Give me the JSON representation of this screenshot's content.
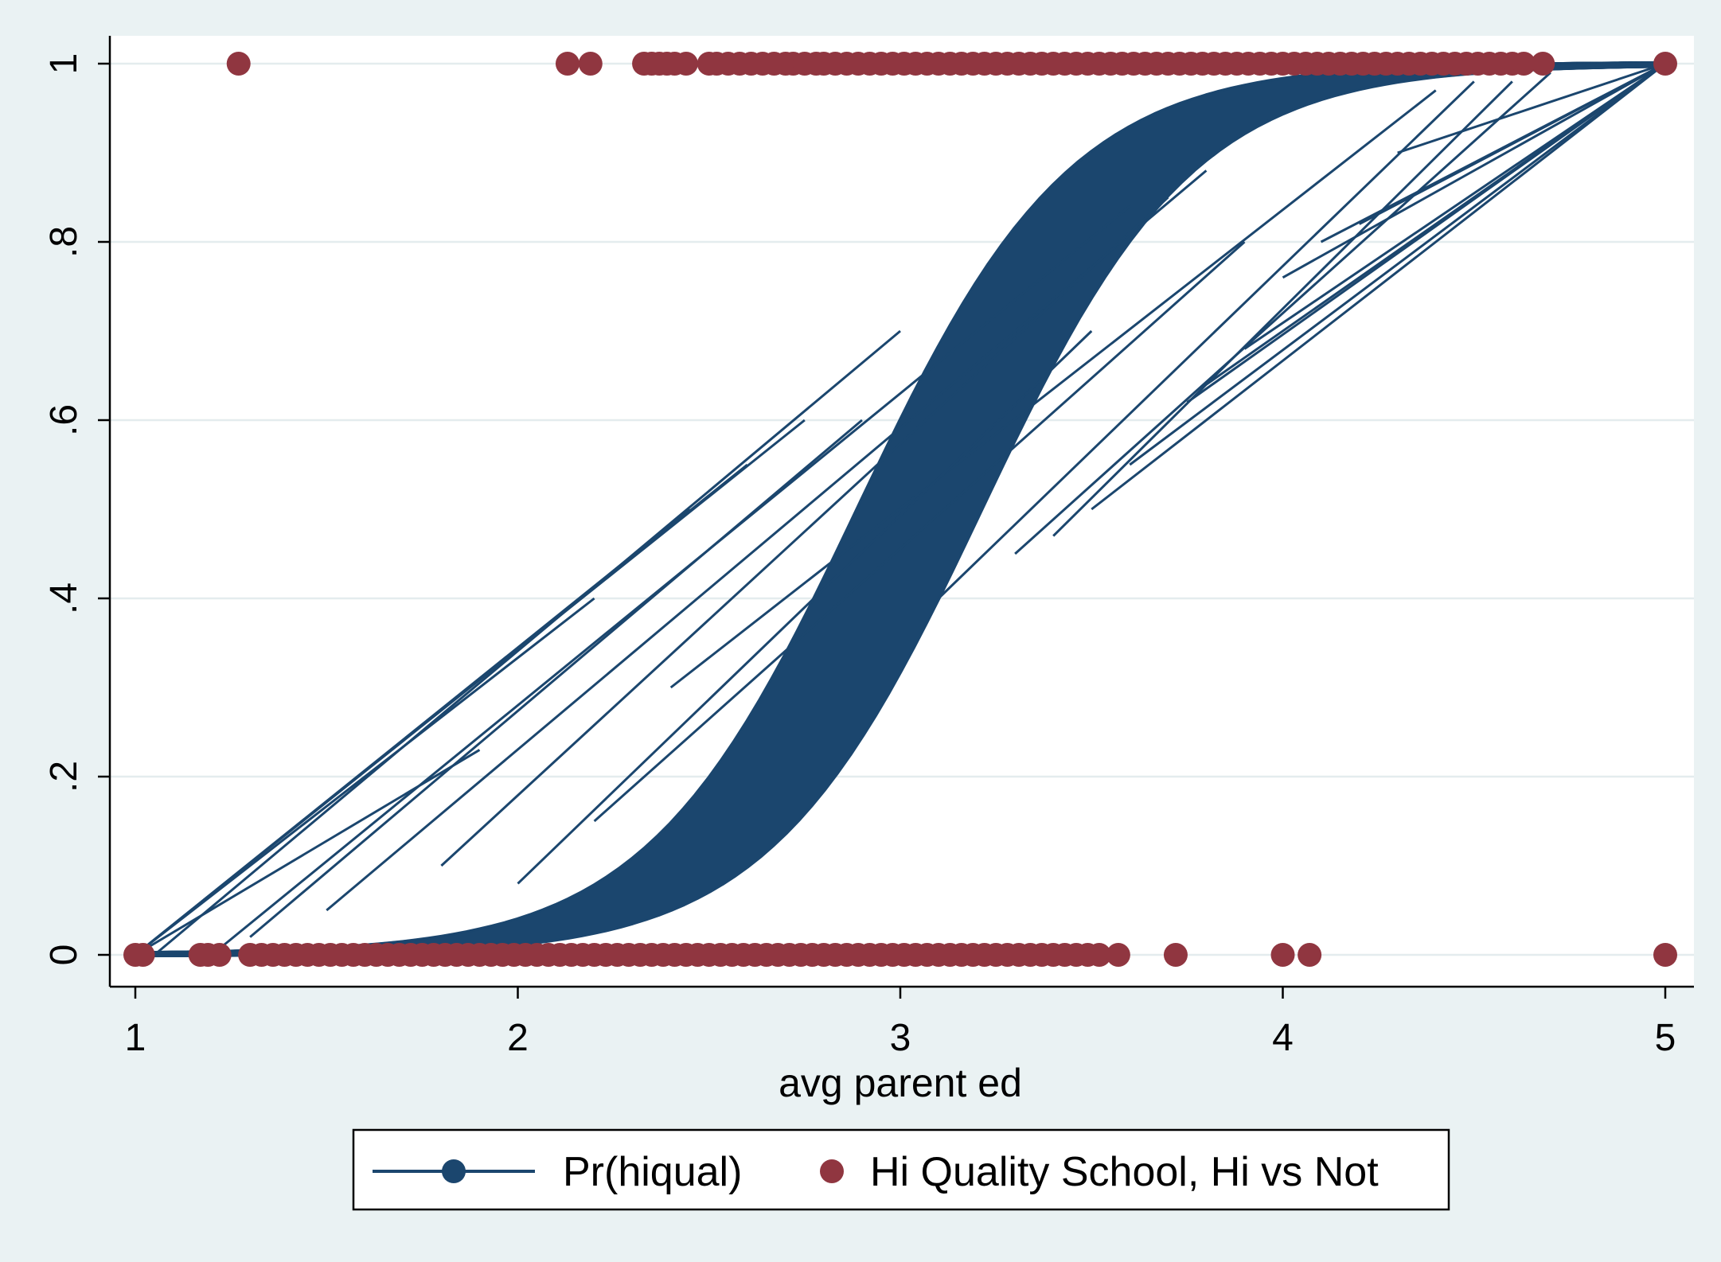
{
  "chart_data": {
    "type": "scatter",
    "title": "",
    "xlabel": "avg parent ed",
    "ylabel": "",
    "xlim": [
      1,
      5
    ],
    "ylim": [
      0,
      1
    ],
    "x_ticks": [
      {
        "value": 1,
        "label": "1"
      },
      {
        "value": 2,
        "label": "2"
      },
      {
        "value": 3,
        "label": "3"
      },
      {
        "value": 4,
        "label": "4"
      },
      {
        "value": 5,
        "label": "5"
      }
    ],
    "y_ticks": [
      {
        "value": 0,
        "label": "0"
      },
      {
        "value": 0.2,
        "label": ".2"
      },
      {
        "value": 0.4,
        "label": ".4"
      },
      {
        "value": 0.6,
        "label": ".6"
      },
      {
        "value": 0.8,
        "label": ".8"
      },
      {
        "value": 1,
        "label": "1"
      }
    ],
    "grid": true,
    "legend_position": "bottom",
    "colors": {
      "background": "#eaf2f3",
      "plot_background": "#ffffff",
      "line_series": "#1b466e",
      "point_series": "#903640",
      "grid": "#e4ecee"
    },
    "series": [
      {
        "name": "Pr(hiqual)",
        "type": "line",
        "curve": "logistic",
        "logistic_center": 3.05,
        "logistic_slope": 3.6,
        "band_width": 0.32,
        "x": [
          1.0,
          1.2,
          1.4,
          1.6,
          1.8,
          2.0,
          2.2,
          2.4,
          2.6,
          2.8,
          3.0,
          3.2,
          3.4,
          3.6,
          3.8,
          4.0,
          4.2,
          4.4,
          4.6,
          4.8,
          5.0
        ],
        "y": [
          0.0,
          0.001,
          0.003,
          0.006,
          0.012,
          0.023,
          0.046,
          0.088,
          0.165,
          0.289,
          0.455,
          0.63,
          0.778,
          0.877,
          0.937,
          0.968,
          0.984,
          0.992,
          0.996,
          0.998,
          1.0
        ],
        "straight_lines": [
          [
            [
              1.0,
              0.0
            ],
            [
              2.75,
              0.6
            ]
          ],
          [
            [
              1.0,
              0.0
            ],
            [
              2.6,
              0.55
            ]
          ],
          [
            [
              1.0,
              0.0
            ],
            [
              2.45,
              0.5
            ]
          ],
          [
            [
              1.05,
              0.0
            ],
            [
              3.0,
              0.7
            ]
          ],
          [
            [
              1.0,
              0.0
            ],
            [
              2.2,
              0.4
            ]
          ],
          [
            [
              1.2,
              0.0
            ],
            [
              3.6,
              0.84
            ]
          ],
          [
            [
              1.5,
              0.05
            ],
            [
              3.8,
              0.88
            ]
          ],
          [
            [
              1.0,
              0.0
            ],
            [
              1.9,
              0.23
            ]
          ],
          [
            [
              1.8,
              0.1
            ],
            [
              3.7,
              0.85
            ]
          ],
          [
            [
              2.4,
              0.3
            ],
            [
              4.4,
              0.97
            ]
          ],
          [
            [
              2.2,
              0.15
            ],
            [
              3.9,
              0.8
            ]
          ],
          [
            [
              3.6,
              0.55
            ],
            [
              5.0,
              1.0
            ]
          ],
          [
            [
              3.5,
              0.5
            ],
            [
              5.0,
              1.0
            ]
          ],
          [
            [
              3.8,
              0.64
            ],
            [
              5.0,
              1.0
            ]
          ],
          [
            [
              3.9,
              0.68
            ],
            [
              5.0,
              1.0
            ]
          ],
          [
            [
              3.75,
              0.62
            ],
            [
              5.0,
              1.0
            ]
          ],
          [
            [
              4.0,
              0.76
            ],
            [
              5.0,
              1.0
            ]
          ],
          [
            [
              3.3,
              0.45
            ],
            [
              4.7,
              0.99
            ]
          ],
          [
            [
              3.4,
              0.47
            ],
            [
              4.6,
              0.98
            ]
          ],
          [
            [
              3.1,
              0.4
            ],
            [
              4.5,
              0.98
            ]
          ],
          [
            [
              4.2,
              0.82
            ],
            [
              5.0,
              1.0
            ]
          ],
          [
            [
              4.1,
              0.8
            ],
            [
              5.0,
              1.0
            ]
          ],
          [
            [
              4.3,
              0.9
            ],
            [
              5.0,
              1.0
            ]
          ],
          [
            [
              2.0,
              0.08
            ],
            [
              3.5,
              0.7
            ]
          ],
          [
            [
              1.3,
              0.02
            ],
            [
              2.9,
              0.6
            ]
          ]
        ]
      },
      {
        "name": "Hi Quality School, Hi vs Not",
        "type": "scatter",
        "y1_x": [
          1.27,
          2.13,
          2.19,
          2.33,
          2.35,
          2.37,
          2.39,
          2.41,
          2.44,
          2.5,
          2.52,
          2.55,
          2.58,
          2.61,
          2.64,
          2.67,
          2.7,
          2.72,
          2.75,
          2.78,
          2.8,
          2.83,
          2.86,
          2.89,
          2.92,
          2.95,
          2.98,
          3.01,
          3.04,
          3.07,
          3.1,
          3.13,
          3.16,
          3.19,
          3.22,
          3.25,
          3.28,
          3.31,
          3.34,
          3.37,
          3.4,
          3.43,
          3.46,
          3.49,
          3.52,
          3.55,
          3.58,
          3.61,
          3.64,
          3.67,
          3.7,
          3.73,
          3.76,
          3.79,
          3.82,
          3.85,
          3.88,
          3.91,
          3.94,
          3.97,
          4.0,
          4.03,
          4.06,
          4.09,
          4.12,
          4.15,
          4.18,
          4.21,
          4.24,
          4.27,
          4.3,
          4.33,
          4.36,
          4.39,
          4.42,
          4.45,
          4.48,
          4.51,
          4.54,
          4.57,
          4.6,
          4.63,
          4.68,
          5.0
        ],
        "y0_x": [
          1.0,
          1.02,
          1.17,
          1.19,
          1.22,
          1.3,
          1.33,
          1.36,
          1.39,
          1.42,
          1.45,
          1.48,
          1.51,
          1.54,
          1.57,
          1.6,
          1.63,
          1.66,
          1.69,
          1.72,
          1.75,
          1.78,
          1.81,
          1.84,
          1.87,
          1.9,
          1.93,
          1.96,
          1.99,
          2.02,
          2.05,
          2.08,
          2.11,
          2.14,
          2.17,
          2.2,
          2.23,
          2.26,
          2.29,
          2.32,
          2.35,
          2.38,
          2.41,
          2.44,
          2.47,
          2.5,
          2.53,
          2.56,
          2.59,
          2.62,
          2.65,
          2.68,
          2.71,
          2.74,
          2.77,
          2.8,
          2.83,
          2.86,
          2.89,
          2.92,
          2.95,
          2.98,
          3.01,
          3.04,
          3.07,
          3.1,
          3.13,
          3.16,
          3.19,
          3.22,
          3.25,
          3.28,
          3.31,
          3.34,
          3.37,
          3.4,
          3.43,
          3.46,
          3.49,
          3.52,
          3.57,
          3.72,
          4.0,
          4.07,
          5.0
        ]
      }
    ]
  },
  "legend": {
    "items": [
      {
        "label": "Pr(hiqual)",
        "symbol": "line-with-marker"
      },
      {
        "label": "Hi Quality School, Hi vs Not",
        "symbol": "marker"
      }
    ]
  }
}
